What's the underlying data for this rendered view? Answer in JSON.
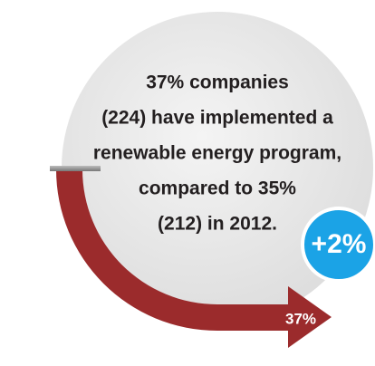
{
  "statement": [
    "37% companies",
    "(224) have implemented a",
    "renewable energy program,",
    "compared to 35%",
    "(212) in 2012."
  ],
  "badge": "+2%",
  "arrow_label": "37%"
}
